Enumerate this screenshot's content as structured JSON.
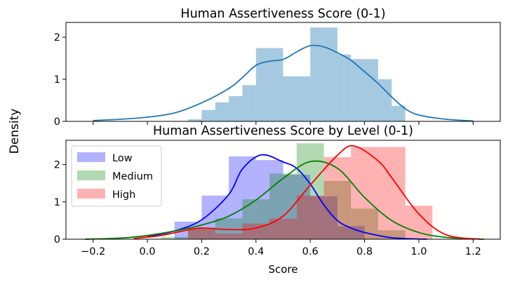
{
  "figure": {
    "supylabel": "Density",
    "xlabel": "Score"
  },
  "chart_data": [
    {
      "type": "histogram+kde",
      "title": "Human Assertiveness Score (0-1)",
      "xlabel": "",
      "ylabel": "",
      "xlim": [
        -0.3,
        1.3
      ],
      "ylim": [
        0,
        2.35
      ],
      "yticks": [
        0,
        1,
        2
      ],
      "xticks_labeled": false,
      "grid": false,
      "legend": null,
      "series": [
        {
          "color": "#1f77b4",
          "bin_edges": [
            0.15,
            0.2,
            0.25,
            0.3,
            0.35,
            0.4,
            0.45,
            0.5,
            0.55,
            0.6,
            0.65,
            0.7,
            0.75,
            0.8,
            0.85,
            0.9,
            0.95
          ],
          "hist": [
            0.05,
            0.27,
            0.45,
            0.6,
            0.86,
            1.74,
            1.74,
            1.07,
            1.07,
            2.23,
            2.23,
            1.59,
            1.48,
            1.48,
            1.0,
            0.37
          ],
          "kde_x": [
            -0.2,
            -0.1,
            0.0,
            0.1,
            0.2,
            0.3,
            0.35,
            0.4,
            0.45,
            0.5,
            0.55,
            0.6,
            0.65,
            0.7,
            0.75,
            0.8,
            0.85,
            0.9,
            0.95,
            1.0,
            1.1,
            1.2
          ],
          "kde_y": [
            0.02,
            0.05,
            0.1,
            0.2,
            0.44,
            0.78,
            1.04,
            1.33,
            1.43,
            1.47,
            1.65,
            1.8,
            1.77,
            1.63,
            1.45,
            1.18,
            0.9,
            0.58,
            0.3,
            0.15,
            0.05,
            0.01
          ]
        }
      ]
    },
    {
      "type": "histogram+kde",
      "title": "Human Assertiveness Score by Level (0-1)",
      "xlabel": "Score",
      "ylabel": "",
      "xlim": [
        -0.3,
        1.3
      ],
      "ylim": [
        0,
        2.65
      ],
      "xticks": [
        -0.2,
        0.0,
        0.2,
        0.4,
        0.6,
        0.8,
        1.0,
        1.2
      ],
      "xtick_labels": [
        "−0.2",
        "0.0",
        "0.2",
        "0.4",
        "0.6",
        "0.8",
        "1.0",
        "1.2"
      ],
      "yticks": [
        0,
        1,
        2
      ],
      "grid": false,
      "legend": "upper-left",
      "series": [
        {
          "name": "Low",
          "color": "#0000ff",
          "bin_edges": [
            0.1,
            0.2,
            0.3,
            0.4,
            0.5,
            0.6,
            0.7,
            0.8
          ],
          "hist": [
            0.47,
            1.17,
            2.22,
            2.12,
            1.73,
            1.15,
            0.35
          ],
          "kde_x": [
            0.0,
            0.1,
            0.2,
            0.3,
            0.35,
            0.42,
            0.5,
            0.55,
            0.6,
            0.65,
            0.7,
            0.75,
            0.8,
            0.9,
            1.03
          ],
          "kde_y": [
            0.07,
            0.22,
            0.52,
            1.2,
            1.88,
            2.26,
            2.07,
            1.9,
            1.48,
            0.92,
            0.5,
            0.3,
            0.18,
            0.04,
            0.0
          ]
        },
        {
          "name": "Medium",
          "color": "#008000",
          "bin_edges": [
            0.05,
            0.15,
            0.25,
            0.35,
            0.45,
            0.55,
            0.65,
            0.75,
            0.85,
            0.95
          ],
          "hist": [
            0.06,
            0.31,
            0.56,
            1.07,
            1.76,
            2.57,
            1.56,
            0.82,
            0.24
          ],
          "kde_x": [
            -0.23,
            -0.1,
            0.0,
            0.1,
            0.2,
            0.3,
            0.4,
            0.5,
            0.6,
            0.7,
            0.8,
            0.9,
            1.0,
            1.1,
            1.24
          ],
          "kde_y": [
            0.0,
            0.03,
            0.1,
            0.22,
            0.38,
            0.62,
            1.05,
            1.63,
            2.08,
            1.9,
            1.12,
            0.5,
            0.18,
            0.05,
            0.0
          ]
        },
        {
          "name": "High",
          "color": "#ff0000",
          "bin_edges": [
            0.15,
            0.25,
            0.35,
            0.45,
            0.55,
            0.65,
            0.75,
            0.85,
            0.95,
            1.05
          ],
          "hist": [
            0.28,
            0.15,
            0.42,
            0.55,
            1.17,
            2.2,
            2.47,
            2.47,
            0.9
          ],
          "kde_x": [
            -0.05,
            0.05,
            0.15,
            0.2,
            0.3,
            0.4,
            0.5,
            0.6,
            0.7,
            0.76,
            0.85,
            0.9,
            1.0,
            1.1,
            1.23
          ],
          "kde_y": [
            0.02,
            0.1,
            0.25,
            0.3,
            0.26,
            0.3,
            0.62,
            1.45,
            2.25,
            2.5,
            2.1,
            1.65,
            0.68,
            0.12,
            0.0
          ]
        }
      ]
    }
  ]
}
